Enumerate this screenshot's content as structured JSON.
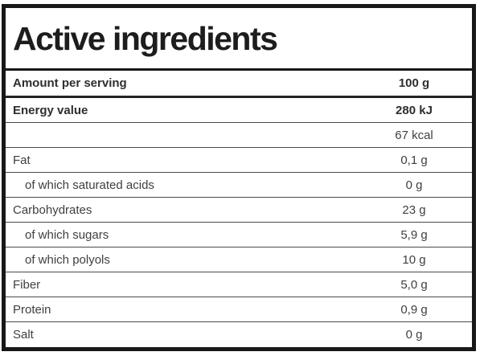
{
  "title": "Active ingredients",
  "table": {
    "header": {
      "label": "Amount per serving",
      "value": "100 g"
    },
    "rows": [
      {
        "label": "Energy value",
        "value": "280 kJ",
        "bold": true,
        "indent": false
      },
      {
        "label": "",
        "value": "67 kcal",
        "bold": false,
        "indent": false
      },
      {
        "label": "Fat",
        "value": "0,1 g",
        "bold": false,
        "indent": false
      },
      {
        "label": "of which saturated acids",
        "value": "0 g",
        "bold": false,
        "indent": true
      },
      {
        "label": "Carbohydrates",
        "value": "23 g",
        "bold": false,
        "indent": false
      },
      {
        "label": "of which sugars",
        "value": "5,9 g",
        "bold": false,
        "indent": true
      },
      {
        "label": "of which polyols",
        "value": "10 g",
        "bold": false,
        "indent": true
      },
      {
        "label": "Fiber",
        "value": "5,0 g",
        "bold": false,
        "indent": false
      },
      {
        "label": "Protein",
        "value": "0,9 g",
        "bold": false,
        "indent": false
      },
      {
        "label": "Salt",
        "value": "0 g",
        "bold": false,
        "indent": false
      }
    ]
  },
  "colors": {
    "outer_border": "#181818",
    "row_divider": "#4a4a4a",
    "header_divider": "#232323",
    "title_text": "#1d1d1d",
    "row_text": "#3f3f3f",
    "background": "#ffffff"
  }
}
